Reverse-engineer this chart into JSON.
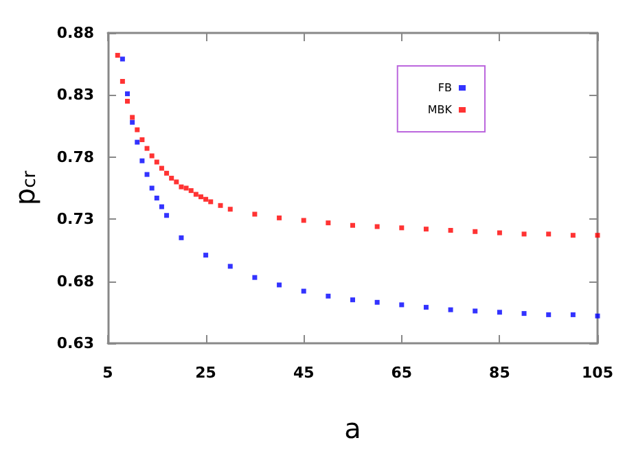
{
  "chart_data": {
    "type": "scatter",
    "xlabel": "a",
    "ylabel": "p$_{cr}$",
    "xlim": [
      5,
      105
    ],
    "xticks": [
      5,
      25,
      45,
      65,
      85,
      105
    ],
    "ylim": [
      0.63,
      0.88
    ],
    "yticks": [
      0.63,
      0.68,
      0.73,
      0.78,
      0.83,
      0.88
    ],
    "grid": false,
    "legend": "top right",
    "marker": "square",
    "series": [
      {
        "name": "FB",
        "color": "#0000ff",
        "x": [
          8,
          9,
          10,
          11,
          12,
          13,
          14,
          15,
          16,
          17,
          20,
          25,
          30,
          35,
          40,
          45,
          50,
          55,
          60,
          65,
          70,
          75,
          80,
          85,
          90,
          95,
          100,
          105
        ],
        "values": [
          0.859,
          0.831,
          0.808,
          0.792,
          0.777,
          0.766,
          0.755,
          0.747,
          0.74,
          0.733,
          0.715,
          0.701,
          0.692,
          0.683,
          0.677,
          0.672,
          0.668,
          0.665,
          0.663,
          0.661,
          0.659,
          0.657,
          0.656,
          0.655,
          0.654,
          0.653,
          0.653,
          0.652
        ]
      },
      {
        "name": "MBK",
        "color": "#ff0000",
        "x": [
          7,
          8,
          9,
          10,
          11,
          12,
          13,
          14,
          15,
          16,
          17,
          18,
          19,
          20,
          21,
          22,
          23,
          24,
          25,
          26,
          28,
          30,
          35,
          40,
          45,
          50,
          55,
          60,
          65,
          70,
          75,
          80,
          85,
          90,
          95,
          100,
          105
        ],
        "values": [
          0.862,
          0.841,
          0.825,
          0.812,
          0.802,
          0.794,
          0.787,
          0.781,
          0.776,
          0.771,
          0.767,
          0.763,
          0.76,
          0.756,
          0.755,
          0.753,
          0.75,
          0.748,
          0.746,
          0.744,
          0.741,
          0.738,
          0.734,
          0.731,
          0.729,
          0.727,
          0.725,
          0.724,
          0.723,
          0.722,
          0.721,
          0.72,
          0.719,
          0.718,
          0.718,
          0.717,
          0.717
        ]
      }
    ]
  }
}
